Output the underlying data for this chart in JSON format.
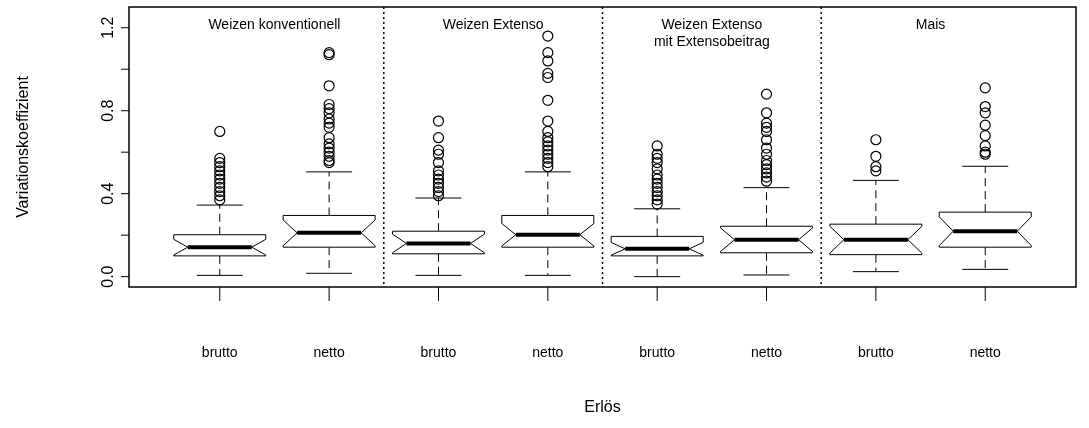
{
  "chart_data": {
    "type": "box",
    "xlabel": "Erlös",
    "ylabel": "Variationskoeffizient",
    "categories": [
      "brutto",
      "netto",
      "brutto",
      "netto",
      "brutto",
      "netto",
      "brutto",
      "netto"
    ],
    "ylim": [
      -0.05,
      1.3
    ],
    "yticks": [
      {
        "value": 0,
        "label": "0.0"
      },
      {
        "value": 0.2,
        "label": null
      },
      {
        "value": 0.4,
        "label": "0.4"
      },
      {
        "value": 0.6,
        "label": null
      },
      {
        "value": 0.8,
        "label": "0.8"
      },
      {
        "value": 1.0,
        "label": null
      },
      {
        "value": 1.2,
        "label": "1.2"
      }
    ],
    "grid": false,
    "boxes": [
      {
        "low": 0.006,
        "q1": 0.1,
        "median": 0.142,
        "q3": 0.202,
        "high": 0.345,
        "outliers": [
          0.37,
          0.39,
          0.41,
          0.43,
          0.45,
          0.47,
          0.49,
          0.51,
          0.53,
          0.55,
          0.57,
          0.7
        ]
      },
      {
        "low": 0.016,
        "q1": 0.142,
        "median": 0.211,
        "q3": 0.295,
        "high": 0.505,
        "outliers": [
          0.55,
          0.56,
          0.58,
          0.6,
          0.62,
          0.64,
          0.67,
          0.72,
          0.74,
          0.76,
          0.79,
          0.81,
          0.83,
          0.92,
          1.07,
          1.08
        ]
      },
      {
        "low": 0.006,
        "q1": 0.11,
        "median": 0.16,
        "q3": 0.219,
        "high": 0.379,
        "outliers": [
          0.39,
          0.41,
          0.43,
          0.45,
          0.47,
          0.49,
          0.51,
          0.55,
          0.59,
          0.61,
          0.67,
          0.75
        ]
      },
      {
        "low": 0.006,
        "q1": 0.142,
        "median": 0.202,
        "q3": 0.295,
        "high": 0.505,
        "outliers": [
          0.53,
          0.55,
          0.57,
          0.59,
          0.61,
          0.63,
          0.65,
          0.67,
          0.7,
          0.75,
          0.85,
          0.96,
          0.98,
          1.04,
          1.08,
          1.16
        ]
      },
      {
        "low": 0.0,
        "q1": 0.1,
        "median": 0.134,
        "q3": 0.194,
        "high": 0.327,
        "outliers": [
          0.35,
          0.37,
          0.39,
          0.41,
          0.43,
          0.45,
          0.47,
          0.49,
          0.52,
          0.55,
          0.57,
          0.59,
          0.63
        ]
      },
      {
        "low": 0.008,
        "q1": 0.115,
        "median": 0.178,
        "q3": 0.243,
        "high": 0.429,
        "outliers": [
          0.46,
          0.48,
          0.5,
          0.52,
          0.54,
          0.56,
          0.59,
          0.62,
          0.66,
          0.7,
          0.72,
          0.74,
          0.79,
          0.88
        ]
      },
      {
        "low": 0.024,
        "q1": 0.106,
        "median": 0.178,
        "q3": 0.253,
        "high": 0.464,
        "outliers": [
          0.51,
          0.53,
          0.58,
          0.66
        ]
      },
      {
        "low": 0.035,
        "q1": 0.142,
        "median": 0.219,
        "q3": 0.311,
        "high": 0.532,
        "outliers": [
          0.59,
          0.6,
          0.63,
          0.68,
          0.73,
          0.79,
          0.82,
          0.91
        ]
      }
    ],
    "annotations": [
      "Weizen konventionell",
      "Weizen Extenso",
      "Weizen Extenso\nmit Extensobeitrag",
      "Mais"
    ]
  }
}
